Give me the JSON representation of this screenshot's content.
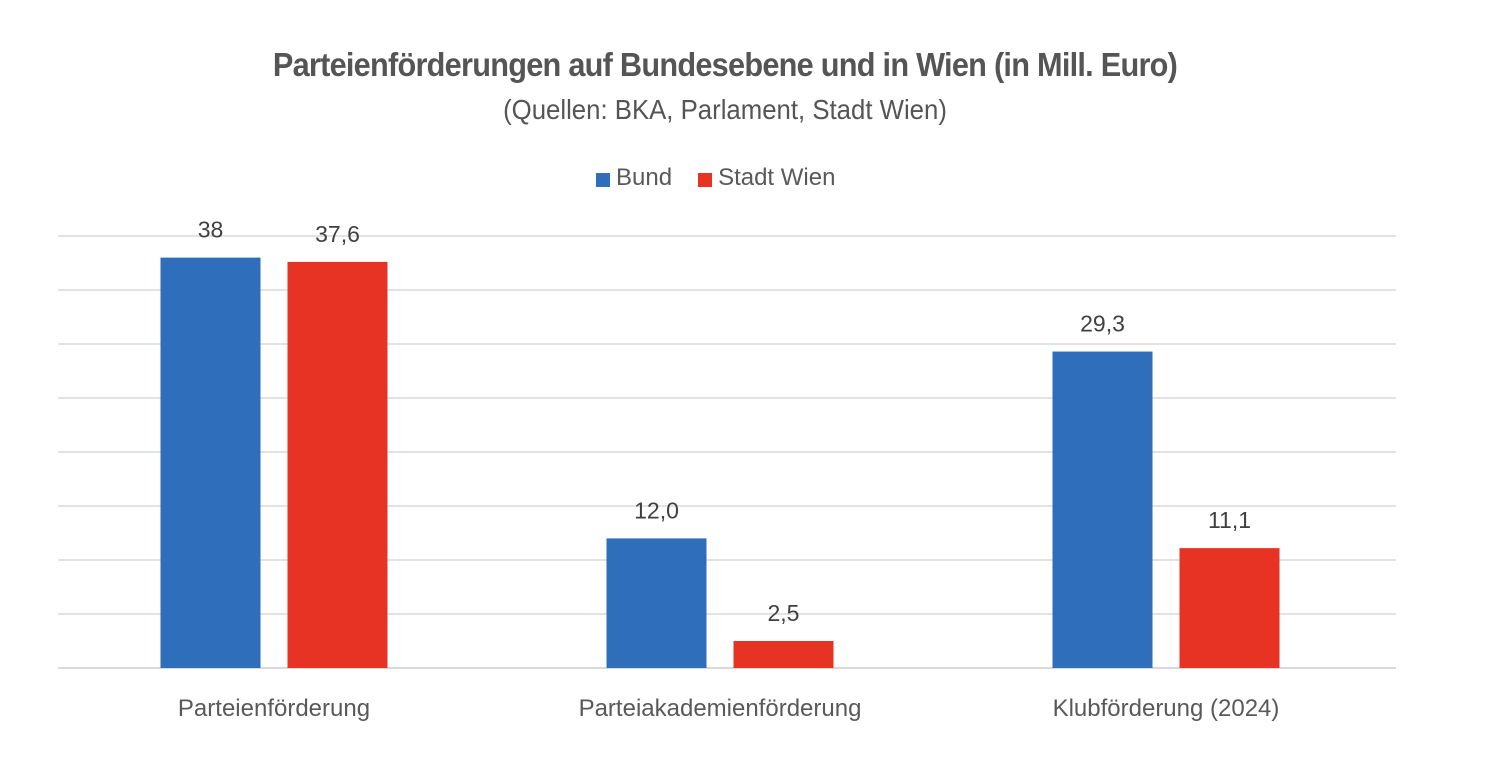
{
  "chart_data": {
    "type": "bar",
    "title": "Parteienförderungen auf Bundesebene und in Wien (in Mill. Euro)",
    "subtitle": "(Quellen: BKA, Parlament, Stadt Wien)",
    "xlabel": "",
    "ylabel": "",
    "ylim": [
      0,
      40
    ],
    "y_gridline_step": 5,
    "grid": true,
    "y_axis_labels_visible": false,
    "legend_position": "top-center",
    "categories": [
      "Parteienförderung",
      "Parteiakademienförderung",
      "Klubförderung (2024)"
    ],
    "series": [
      {
        "name": "Bund",
        "color": "#2F6EBA",
        "values": [
          38,
          12.0,
          29.3
        ],
        "labels": [
          "38",
          "12,0",
          "29,3"
        ]
      },
      {
        "name": "Stadt Wien",
        "color": "#E63323",
        "values": [
          37.6,
          2.5,
          11.1
        ],
        "labels": [
          "37,6",
          "2,5",
          "11,1"
        ]
      }
    ]
  }
}
